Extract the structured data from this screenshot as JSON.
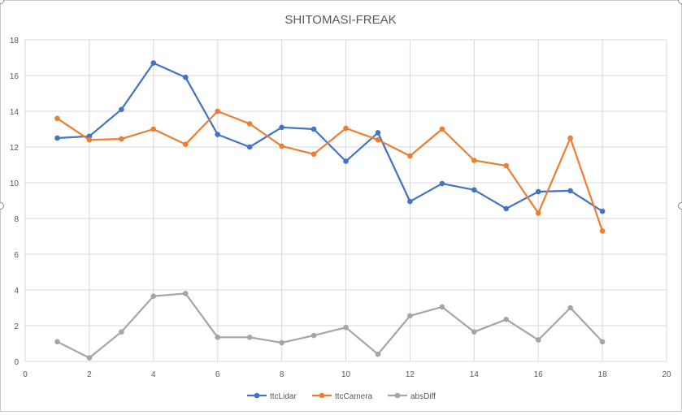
{
  "chart_data": {
    "type": "scatter",
    "title": "SHITOMASI-FREAK",
    "xlabel": "",
    "ylabel": "",
    "xlim": [
      0,
      20
    ],
    "ylim": [
      0,
      18
    ],
    "x_ticks": [
      "0",
      "2",
      "4",
      "6",
      "8",
      "10",
      "12",
      "14",
      "16",
      "18",
      "20"
    ],
    "y_ticks": [
      "0",
      "2",
      "4",
      "6",
      "8",
      "10",
      "12",
      "14",
      "16",
      "18"
    ],
    "grid": true,
    "legend_position": "bottom",
    "x": [
      1,
      2,
      3,
      4,
      5,
      6,
      7,
      8,
      9,
      10,
      11,
      12,
      13,
      14,
      15,
      16,
      17,
      18
    ],
    "series": [
      {
        "name": "ttcLidar",
        "color": "#4472c4",
        "values": [
          12.5,
          12.6,
          14.1,
          16.7,
          15.9,
          12.7,
          12.0,
          13.1,
          13.0,
          11.2,
          12.8,
          8.95,
          9.95,
          9.6,
          8.55,
          9.5,
          9.55,
          8.4
        ]
      },
      {
        "name": "ttcCamera",
        "color": "#ed7d31",
        "values": [
          13.6,
          12.4,
          12.45,
          13.0,
          12.15,
          14.0,
          13.3,
          12.05,
          11.6,
          13.05,
          12.4,
          11.5,
          13.0,
          11.25,
          10.95,
          8.3,
          12.5,
          7.3
        ]
      },
      {
        "name": "absDiff",
        "color": "#a5a5a5",
        "values": [
          1.1,
          0.2,
          1.65,
          3.65,
          3.8,
          1.35,
          1.35,
          1.05,
          1.45,
          1.9,
          0.4,
          2.55,
          3.05,
          1.65,
          2.35,
          1.2,
          3.0,
          1.1
        ]
      }
    ]
  }
}
